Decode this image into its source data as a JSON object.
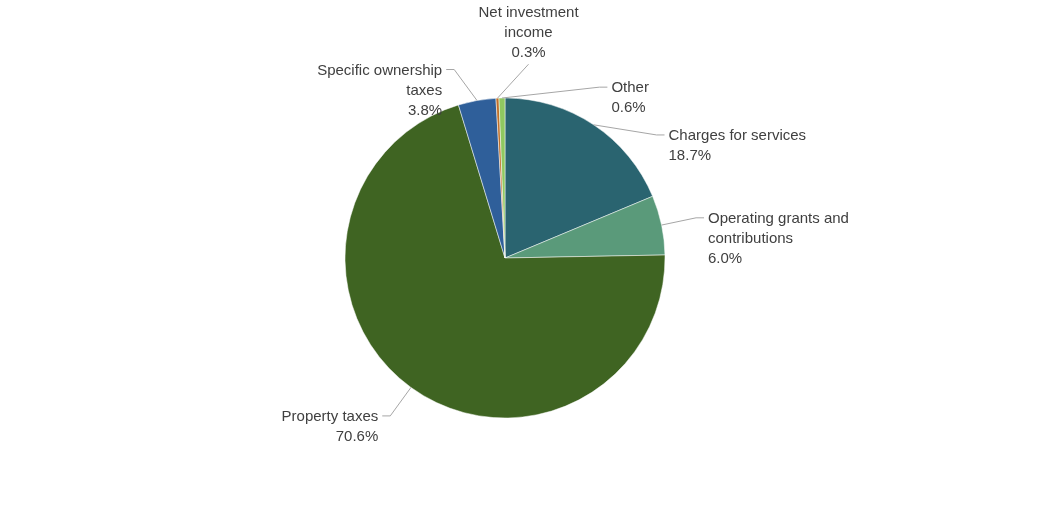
{
  "chart_data": {
    "type": "pie",
    "categories": [
      "Charges for services",
      "Operating grants and contributions",
      "Property taxes",
      "Specific ownership taxes",
      "Net investment income",
      "Other"
    ],
    "values": [
      18.7,
      6.0,
      70.6,
      3.8,
      0.3,
      0.6
    ],
    "value_labels": [
      "18.7%",
      "6.0%",
      "70.6%",
      "3.8%",
      "0.3%",
      "0.6%"
    ],
    "colors": [
      "#2a6470",
      "#5a9a7a",
      "#3f6422",
      "#2f5f9a",
      "#c0702a",
      "#8fc860"
    ],
    "legend": false
  }
}
